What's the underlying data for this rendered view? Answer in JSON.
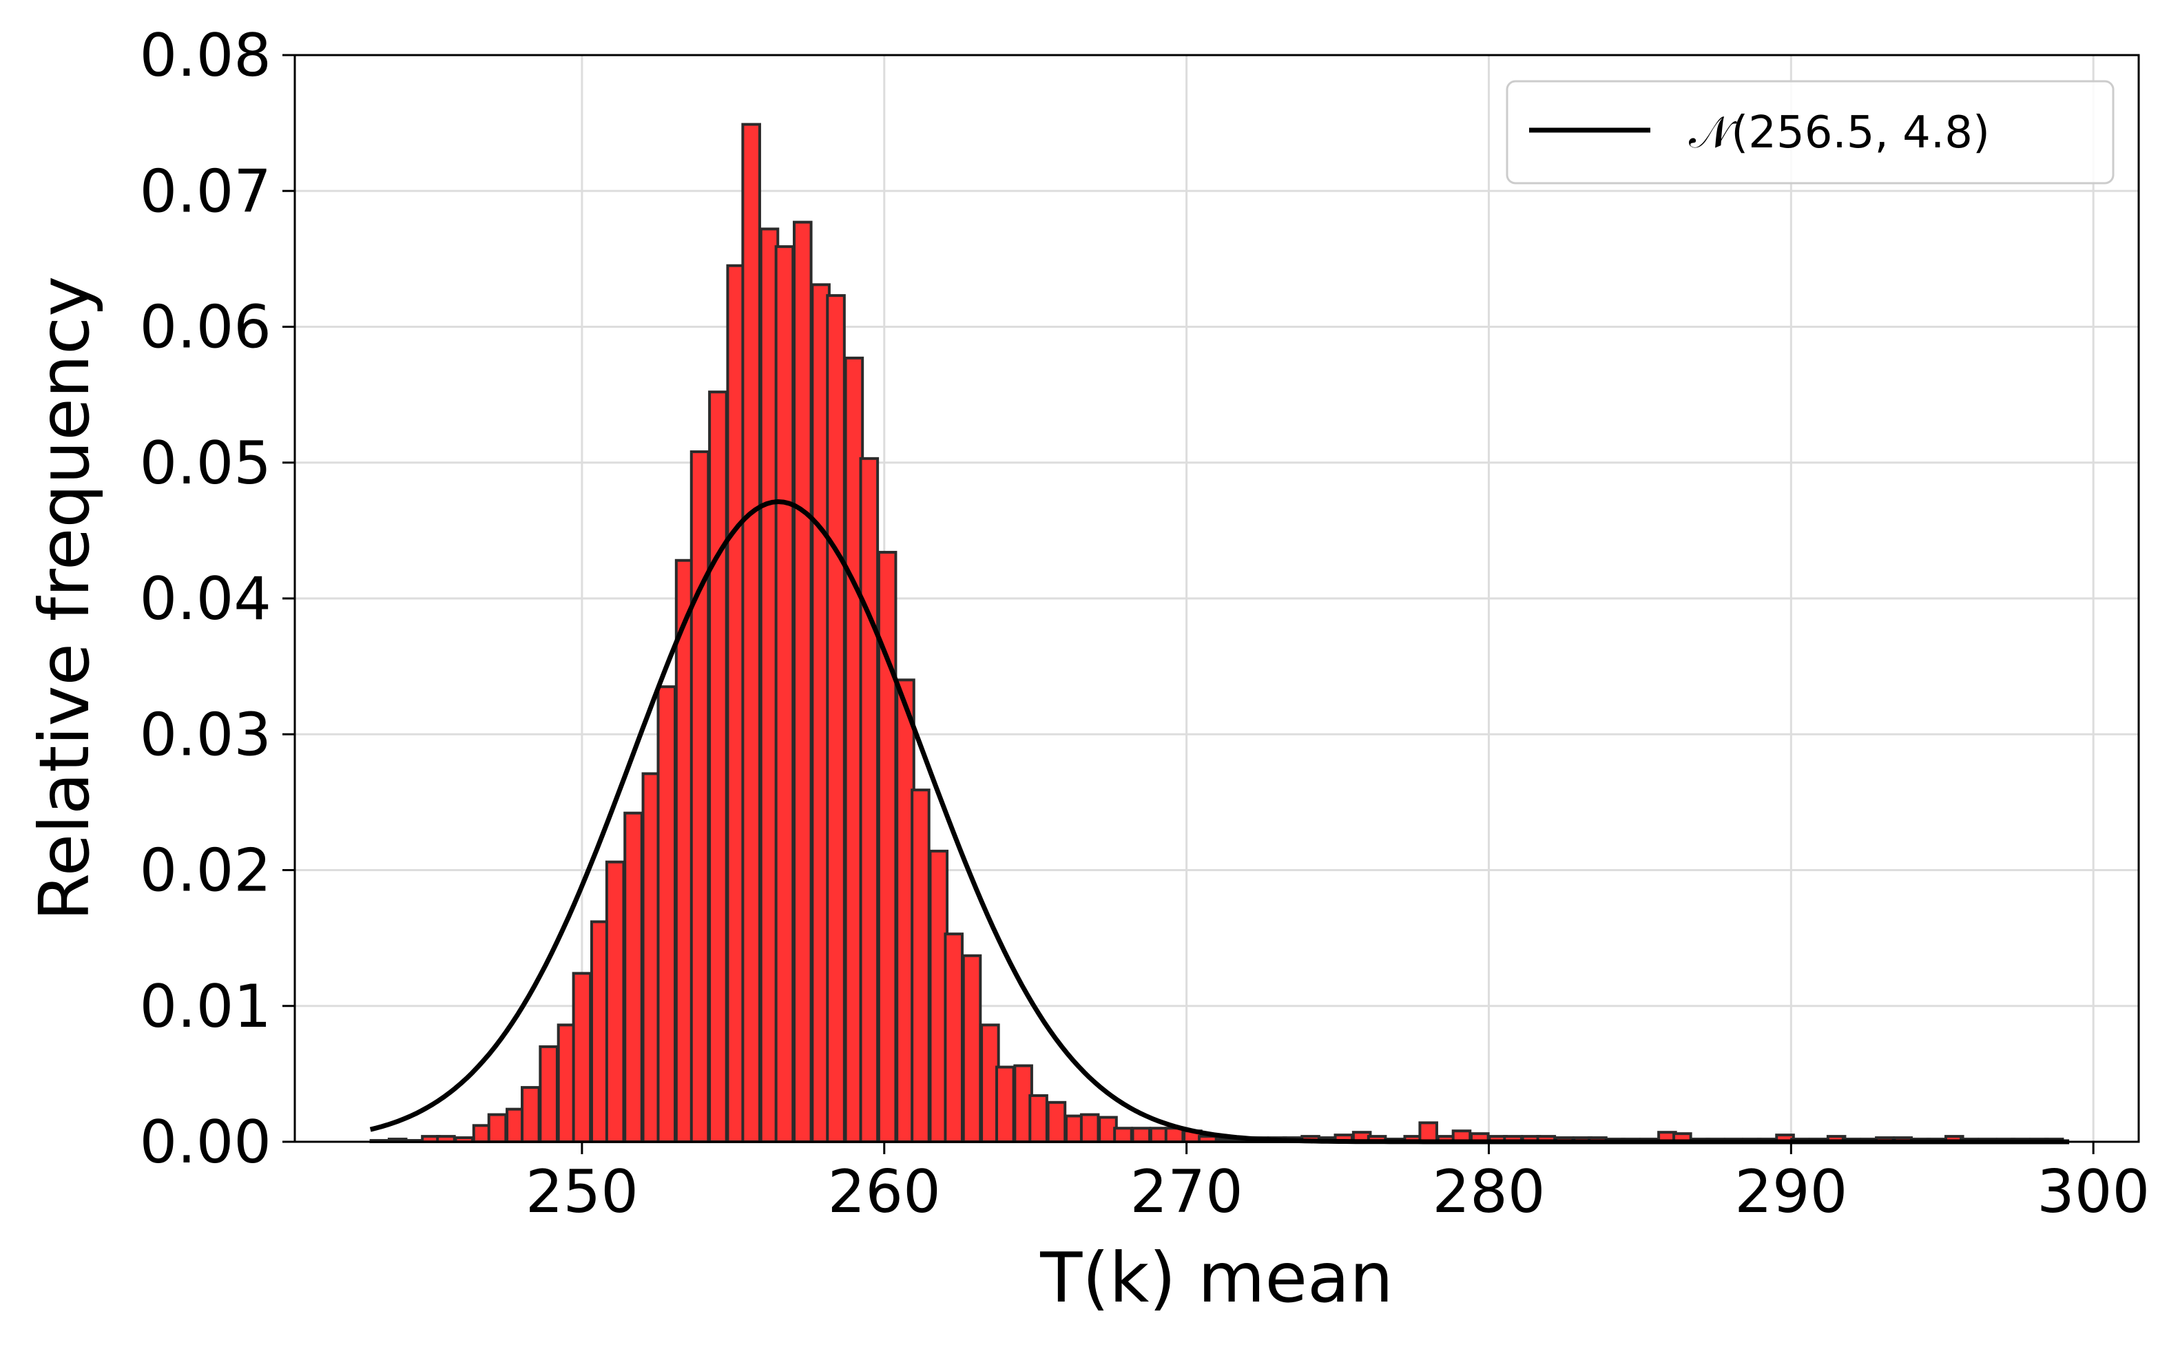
{
  "chart_data": {
    "type": "bar",
    "xlabel": "T(k) mean",
    "ylabel": "Relative frequency",
    "xlim": [
      240.5,
      301.5
    ],
    "ylim": [
      0,
      0.08
    ],
    "xticks": [
      "250",
      "260",
      "270",
      "280",
      "290",
      "300"
    ],
    "yticks": [
      "0.00",
      "0.01",
      "0.02",
      "0.03",
      "0.04",
      "0.05",
      "0.06",
      "0.07",
      "0.08"
    ],
    "grid": true,
    "legend_position": "top-right",
    "legend_label": "𝒩(256.5,  4.8)",
    "colors": {
      "bar": "#ff3333",
      "bar_edge": "#2b2b2b",
      "curve": "#000000",
      "grid": "#dddddd"
    },
    "bin_width": 0.56,
    "histogram": {
      "series_name": "",
      "bin_centers": [
        243.3,
        243.9,
        244.4,
        245.0,
        245.5,
        246.1,
        246.7,
        247.2,
        247.8,
        248.3,
        248.9,
        249.5,
        250.0,
        250.6,
        251.1,
        251.7,
        252.3,
        252.8,
        253.4,
        253.9,
        254.5,
        255.1,
        255.6,
        256.2,
        256.7,
        257.3,
        257.9,
        258.4,
        259.0,
        259.5,
        260.1,
        260.7,
        261.2,
        261.8,
        262.3,
        262.9,
        263.5,
        264.0,
        264.6,
        265.1,
        265.7,
        266.3,
        266.8,
        267.4,
        267.9,
        268.5,
        269.1,
        269.6,
        270.2,
        270.7,
        271.3,
        271.9,
        272.4,
        273.0,
        273.5,
        274.1,
        274.7,
        275.2,
        275.8,
        276.3,
        276.9,
        277.5,
        278.0,
        278.6,
        279.1,
        279.7,
        280.3,
        280.8,
        281.4,
        281.9,
        282.5,
        283.1,
        283.6,
        284.2,
        284.7,
        285.3,
        285.9,
        286.4,
        287.0,
        287.5,
        288.1,
        288.7,
        289.2,
        289.8,
        290.3,
        290.9,
        291.5,
        292.0,
        292.6,
        293.1,
        293.7,
        294.3,
        294.8,
        295.4,
        295.9,
        296.5,
        297.1,
        297.6,
        298.2,
        298.7
      ],
      "values": [
        0.0001,
        0.0002,
        0.0001,
        0.0004,
        0.0004,
        0.0003,
        0.0012,
        0.002,
        0.0024,
        0.004,
        0.007,
        0.0086,
        0.0124,
        0.0162,
        0.0206,
        0.0242,
        0.0271,
        0.0335,
        0.0428,
        0.0508,
        0.0552,
        0.0645,
        0.0749,
        0.0672,
        0.0659,
        0.0677,
        0.0631,
        0.0623,
        0.0577,
        0.0503,
        0.0434,
        0.034,
        0.0259,
        0.0214,
        0.0153,
        0.0137,
        0.0086,
        0.0055,
        0.0056,
        0.0034,
        0.0029,
        0.0019,
        0.002,
        0.0018,
        0.001,
        0.001,
        0.001,
        0.001,
        0.0008,
        0.0004,
        0.0002,
        0.0002,
        0.0003,
        0.0003,
        0.0003,
        0.0004,
        0.0003,
        0.0005,
        0.0007,
        0.0004,
        0.0002,
        0.0004,
        0.0014,
        0.0004,
        0.0008,
        0.0006,
        0.0004,
        0.0004,
        0.0004,
        0.0004,
        0.0003,
        0.0003,
        0.0003,
        0.0002,
        0.0002,
        0.0002,
        0.0007,
        0.0006,
        0.0002,
        0.0002,
        0.0002,
        0.0002,
        0.0002,
        0.0005,
        0.0002,
        0.0002,
        0.0004,
        0.0002,
        0.0002,
        0.0003,
        0.0003,
        0.0002,
        0.0002,
        0.0004,
        0.0002,
        0.0002,
        0.0002,
        0.0002,
        0.0002,
        0.0002
      ]
    },
    "curve": {
      "type": "line",
      "name": "𝒩(256.5,  4.8)",
      "mean": 256.5,
      "std": 4.8,
      "normalization": 0.567,
      "x_range": [
        243.0,
        299.2
      ]
    }
  }
}
